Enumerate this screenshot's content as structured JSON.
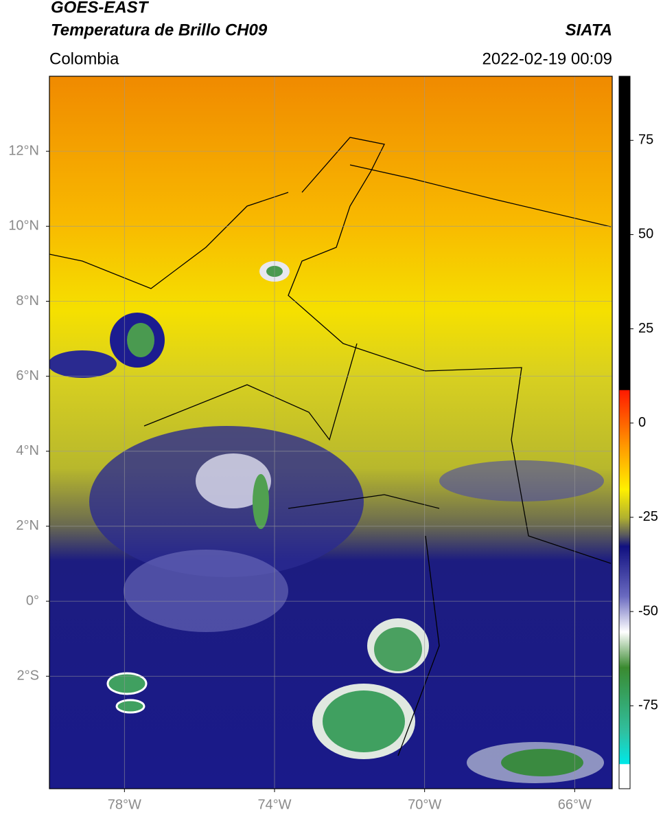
{
  "header": {
    "title": "GOES-EAST",
    "subtitle": "Temperatura de Brillo CH09",
    "region": "Colombia",
    "source": "SIATA",
    "datetime": "2022-02-19 00:09"
  },
  "map": {
    "xlim": [
      -80,
      -65
    ],
    "ylim": [
      -5,
      14
    ],
    "xticks": [
      {
        "value": -78,
        "label": "78°W"
      },
      {
        "value": -74,
        "label": "74°W"
      },
      {
        "value": -70,
        "label": "70°W"
      },
      {
        "value": -66,
        "label": "66°W"
      }
    ],
    "yticks": [
      {
        "value": 12,
        "label": "12°N"
      },
      {
        "value": 10,
        "label": "10°N"
      },
      {
        "value": 8,
        "label": "8°N"
      },
      {
        "value": 6,
        "label": "6°N"
      },
      {
        "value": 4,
        "label": "4°N"
      },
      {
        "value": 2,
        "label": "2°N"
      },
      {
        "value": 0,
        "label": "0°"
      },
      {
        "value": -2,
        "label": "2°S"
      }
    ],
    "grid": true
  },
  "colorbar": {
    "lim": [
      -97,
      92
    ],
    "ticks": [
      75,
      50,
      25,
      0,
      -25,
      -50,
      -75
    ]
  }
}
